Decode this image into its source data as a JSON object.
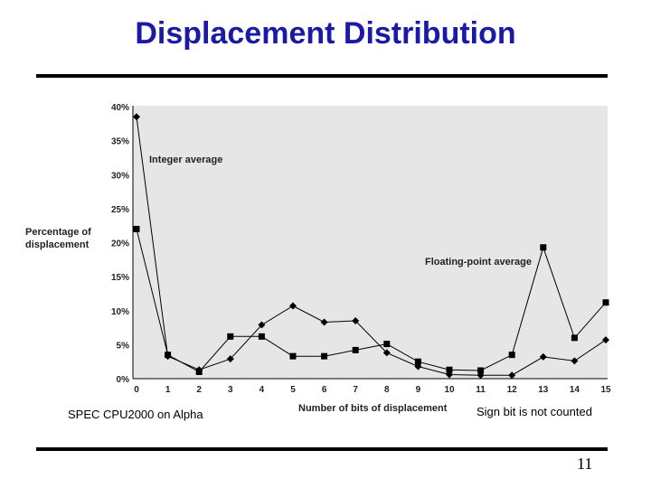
{
  "slide": {
    "title": "Displacement Distribution",
    "footer_left": "SPEC CPU2000 on Alpha",
    "footer_right": "Sign bit is not counted",
    "page_number": "11"
  },
  "chart_data": {
    "type": "line",
    "xlabel": "Number of bits of displacement",
    "ylabel_lines": [
      "Percentage of",
      "displacement"
    ],
    "x": [
      0,
      1,
      2,
      3,
      4,
      5,
      6,
      7,
      8,
      9,
      10,
      11,
      12,
      13,
      14,
      15
    ],
    "y_ticks": [
      "0%",
      "5%",
      "10%",
      "15%",
      "20%",
      "25%",
      "30%",
      "35%",
      "40%"
    ],
    "ylim": [
      0,
      40
    ],
    "grid": false,
    "series": [
      {
        "name": "Integer average",
        "marker": "diamond",
        "values": [
          38.5,
          3.3,
          1.3,
          2.9,
          7.9,
          10.7,
          8.3,
          8.5,
          3.8,
          1.8,
          0.6,
          0.5,
          0.5,
          3.2,
          2.6,
          5.7
        ]
      },
      {
        "name": "Floating-point average",
        "marker": "square",
        "values": [
          22.0,
          3.5,
          1.0,
          6.2,
          6.2,
          3.3,
          3.3,
          4.2,
          5.1,
          2.5,
          1.3,
          1.2,
          3.5,
          19.3,
          6.0,
          11.2
        ]
      }
    ],
    "colors": {
      "plot_bg": "#e6e6e6",
      "line": "#000000"
    }
  }
}
